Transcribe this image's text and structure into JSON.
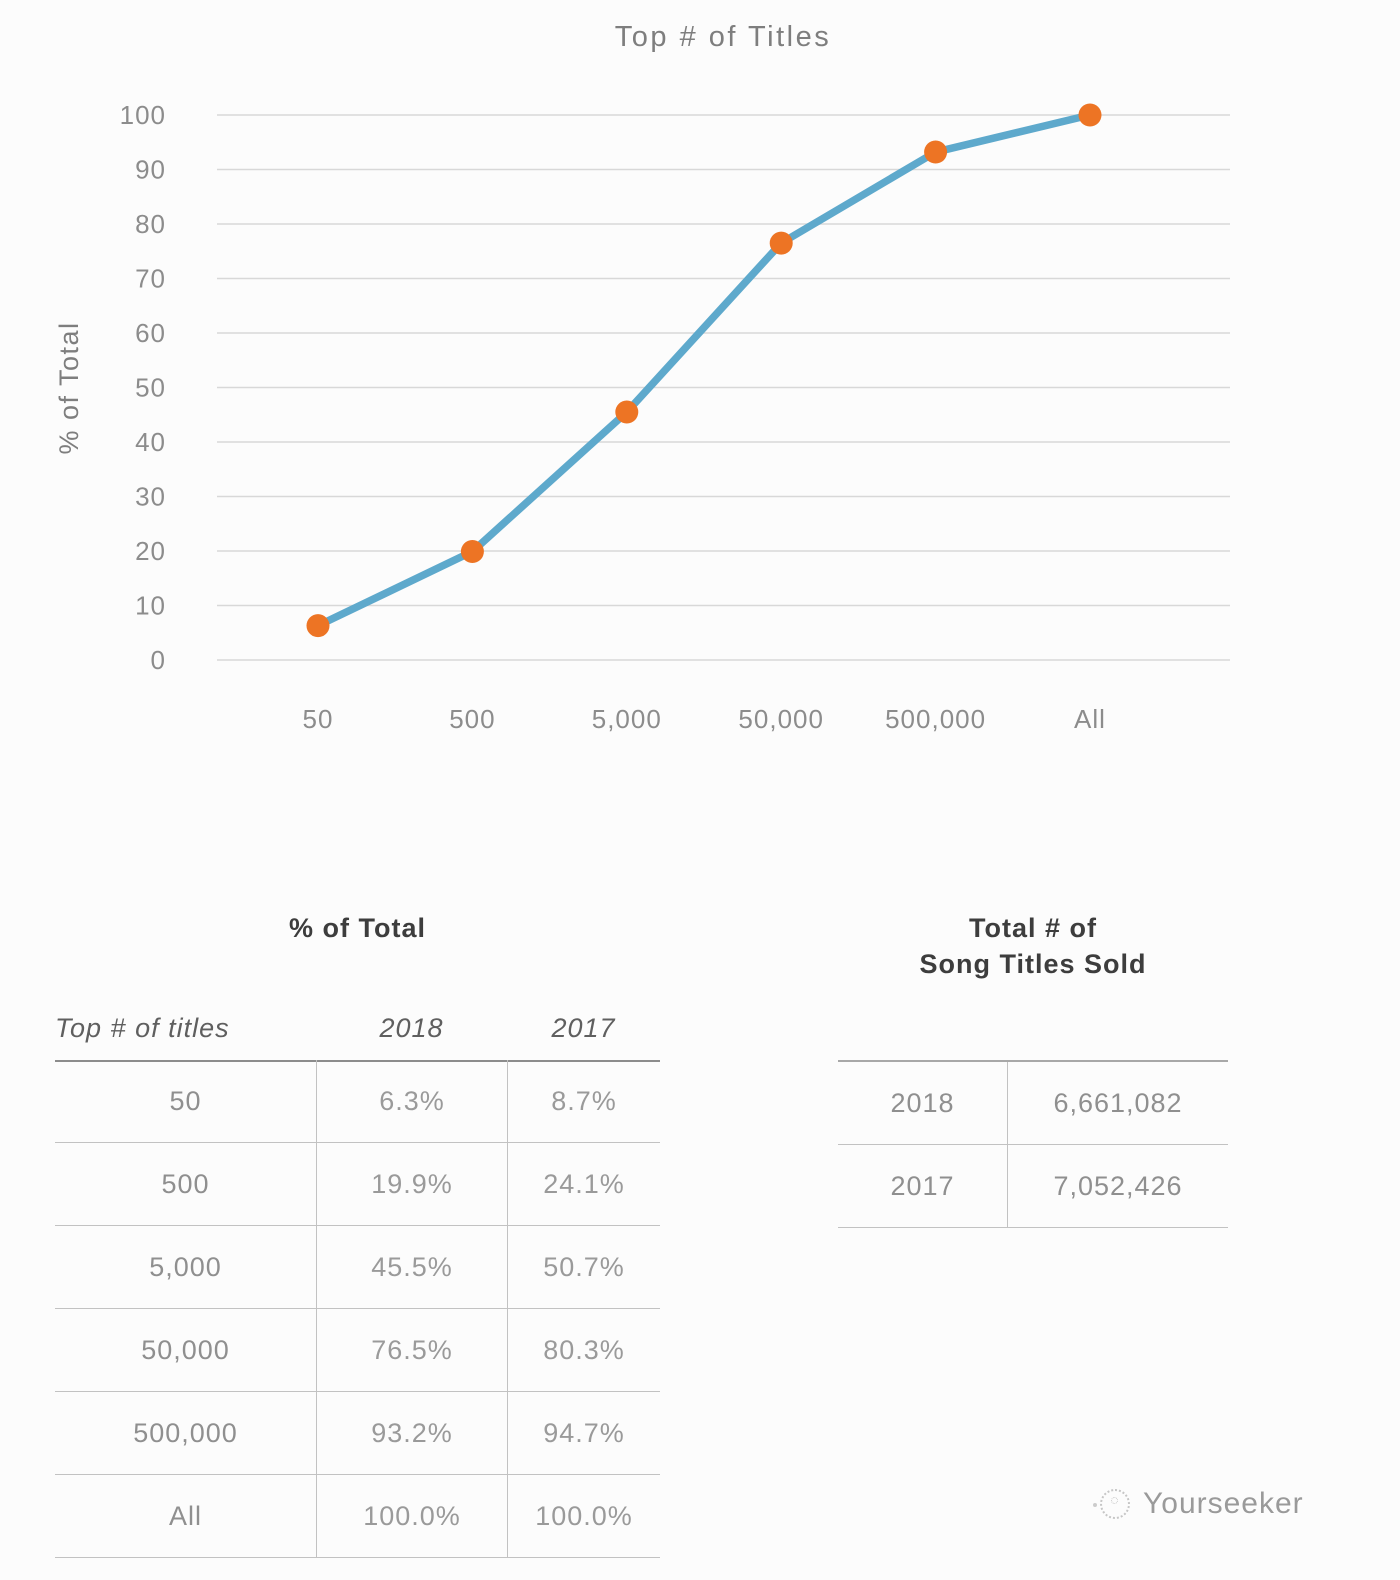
{
  "page": {
    "background": "#fcfcfc"
  },
  "chart": {
    "title": "Top # of Titles",
    "ylabel": "% of Total",
    "colors": {
      "line": "#5ea9cc",
      "marker": "#ed7424",
      "grid": "#d8d8d8",
      "tick_text": "#8c8c8c",
      "title_text": "#7e7e7e"
    }
  },
  "chart_data": {
    "type": "line",
    "title": "Top # of Titles",
    "xlabel": "",
    "ylabel": "% of Total",
    "categories": [
      "50",
      "500",
      "5,000",
      "50,000",
      "500,000",
      "All"
    ],
    "series": [
      {
        "name": "2018",
        "values": [
          6.3,
          19.9,
          45.5,
          76.5,
          93.2,
          100.0
        ]
      }
    ],
    "ylim": [
      0,
      100
    ],
    "yticks": [
      0,
      10,
      20,
      30,
      40,
      50,
      60,
      70,
      80,
      90,
      100
    ],
    "grid": true,
    "legend": false
  },
  "tables": {
    "pct": {
      "title": "% of Total",
      "columns": [
        "Top # of titles",
        "2018",
        "2017"
      ],
      "rows": [
        {
          "label": "50",
          "y2018": "6.3%",
          "y2017": "8.7%"
        },
        {
          "label": "500",
          "y2018": "19.9%",
          "y2017": "24.1%"
        },
        {
          "label": "5,000",
          "y2018": "45.5%",
          "y2017": "50.7%"
        },
        {
          "label": "50,000",
          "y2018": "76.5%",
          "y2017": "80.3%"
        },
        {
          "label": "500,000",
          "y2018": "93.2%",
          "y2017": "94.7%"
        },
        {
          "label": "All",
          "y2018": "100.0%",
          "y2017": "100.0%"
        }
      ]
    },
    "totals": {
      "title_line1": "Total # of",
      "title_line2": "Song Titles Sold",
      "rows": [
        {
          "year": "2018",
          "value": "6,661,082"
        },
        {
          "year": "2017",
          "value": "7,052,426"
        }
      ]
    }
  },
  "footer": {
    "brand": "Yourseeker"
  }
}
